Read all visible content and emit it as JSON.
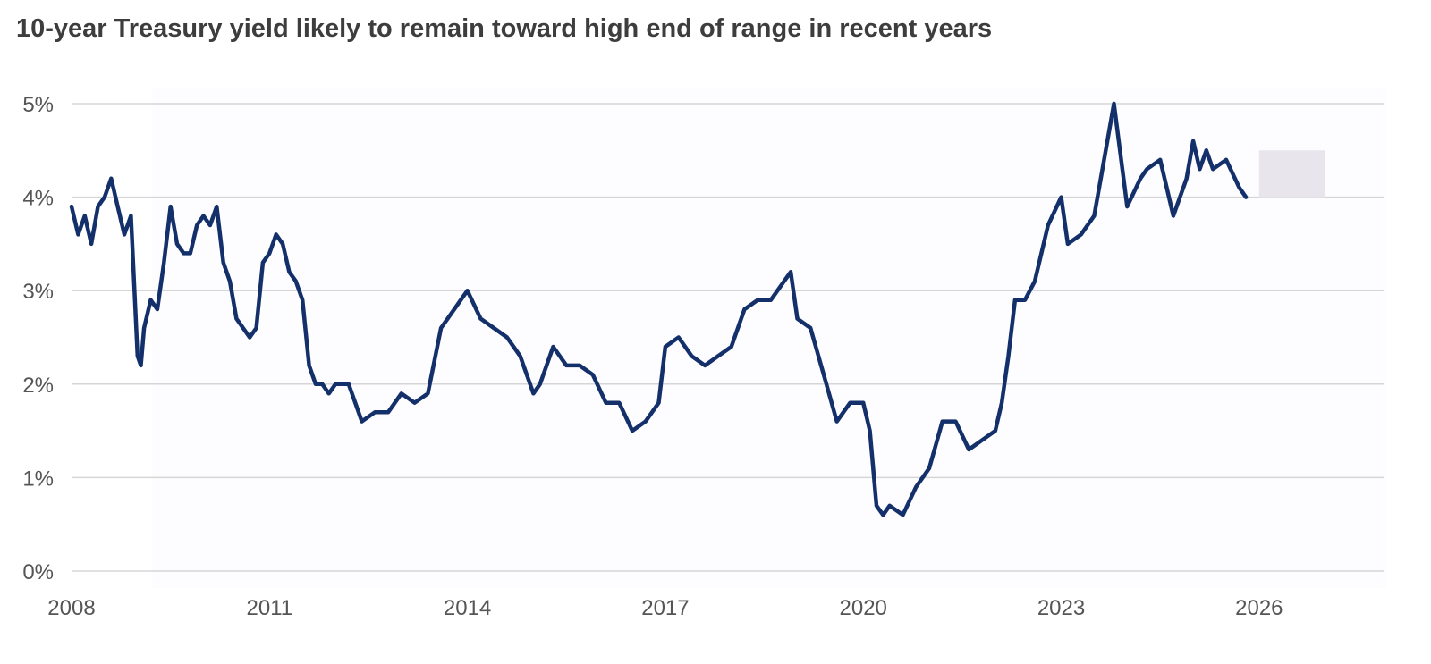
{
  "title": "10-year Treasury yield likely to remain toward high end of range in recent years",
  "colors": {
    "line": "#14306b",
    "grid": "#d6d6d6",
    "band": "#e8e6ec",
    "text": "#555555"
  },
  "chart_data": {
    "type": "line",
    "title": "10-year Treasury yield likely to remain toward high end of range in recent years",
    "xlabel": "",
    "ylabel": "",
    "xlim": [
      2008,
      2027.9
    ],
    "ylim": [
      0,
      5
    ],
    "yticks": [
      0,
      1,
      2,
      3,
      4,
      5
    ],
    "ytick_labels": [
      "0%",
      "1%",
      "2%",
      "3%",
      "4%",
      "5%"
    ],
    "xticks": [
      2008,
      2011,
      2014,
      2017,
      2020,
      2023,
      2026
    ],
    "xtick_labels": [
      "2008",
      "2011",
      "2014",
      "2017",
      "2020",
      "2023",
      "2026"
    ],
    "grid": true,
    "legend": "none",
    "series": [
      {
        "x": [
          2008.0,
          2008.1,
          2008.2,
          2008.3,
          2008.4,
          2008.5,
          2008.6,
          2008.7,
          2008.8,
          2008.9,
          2009.0,
          2009.05,
          2009.1,
          2009.2,
          2009.3,
          2009.4,
          2009.5,
          2009.6,
          2009.7,
          2009.8,
          2009.9,
          2010.0,
          2010.1,
          2010.2,
          2010.3,
          2010.4,
          2010.5,
          2010.6,
          2010.7,
          2010.8,
          2010.9,
          2011.0,
          2011.1,
          2011.2,
          2011.3,
          2011.4,
          2011.5,
          2011.6,
          2011.7,
          2011.8,
          2011.9,
          2012.0,
          2012.2,
          2012.4,
          2012.6,
          2012.8,
          2013.0,
          2013.2,
          2013.4,
          2013.6,
          2013.7,
          2013.9,
          2014.0,
          2014.2,
          2014.4,
          2014.6,
          2014.8,
          2015.0,
          2015.1,
          2015.3,
          2015.5,
          2015.7,
          2015.9,
          2016.1,
          2016.3,
          2016.5,
          2016.7,
          2016.9,
          2017.0,
          2017.2,
          2017.4,
          2017.6,
          2017.8,
          2018.0,
          2018.2,
          2018.4,
          2018.6,
          2018.8,
          2018.9,
          2019.0,
          2019.2,
          2019.4,
          2019.6,
          2019.8,
          2020.0,
          2020.1,
          2020.2,
          2020.3,
          2020.4,
          2020.6,
          2020.8,
          2021.0,
          2021.2,
          2021.4,
          2021.6,
          2021.8,
          2022.0,
          2022.1,
          2022.2,
          2022.3,
          2022.45,
          2022.6,
          2022.8,
          2023.0,
          2023.1,
          2023.3,
          2023.5,
          2023.6,
          2023.8,
          2024.0,
          2024.2,
          2024.3,
          2024.5,
          2024.7,
          2024.9,
          2025.0,
          2025.1,
          2025.2,
          2025.3,
          2025.5,
          2025.7,
          2025.8
        ],
        "y": [
          3.9,
          3.6,
          3.8,
          3.5,
          3.9,
          4.0,
          4.2,
          3.9,
          3.6,
          3.8,
          2.3,
          2.2,
          2.6,
          2.9,
          2.8,
          3.3,
          3.9,
          3.5,
          3.4,
          3.4,
          3.7,
          3.8,
          3.7,
          3.9,
          3.3,
          3.1,
          2.7,
          2.6,
          2.5,
          2.6,
          3.3,
          3.4,
          3.6,
          3.5,
          3.2,
          3.1,
          2.9,
          2.2,
          2.0,
          2.0,
          1.9,
          2.0,
          2.0,
          1.6,
          1.7,
          1.7,
          1.9,
          1.8,
          1.9,
          2.6,
          2.7,
          2.9,
          3.0,
          2.7,
          2.6,
          2.5,
          2.3,
          1.9,
          2.0,
          2.4,
          2.2,
          2.2,
          2.1,
          1.8,
          1.8,
          1.5,
          1.6,
          1.8,
          2.4,
          2.5,
          2.3,
          2.2,
          2.3,
          2.4,
          2.8,
          2.9,
          2.9,
          3.1,
          3.2,
          2.7,
          2.6,
          2.1,
          1.6,
          1.8,
          1.8,
          1.5,
          0.7,
          0.6,
          0.7,
          0.6,
          0.9,
          1.1,
          1.6,
          1.6,
          1.3,
          1.4,
          1.5,
          1.8,
          2.3,
          2.9,
          2.9,
          3.1,
          3.7,
          4.0,
          3.5,
          3.6,
          3.8,
          4.2,
          5.0,
          3.9,
          4.2,
          4.3,
          4.4,
          3.8,
          4.2,
          4.6,
          4.3,
          4.5,
          4.3,
          4.4,
          4.1,
          4.0
        ],
        "color": "#14306b"
      }
    ],
    "shaded_range": {
      "x": [
        2026.0,
        2027.0
      ],
      "y": [
        4.0,
        4.5
      ]
    }
  }
}
